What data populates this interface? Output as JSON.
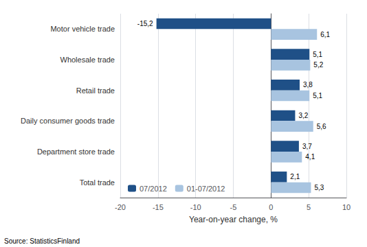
{
  "chart_data": {
    "type": "bar",
    "orientation": "horizontal",
    "categories": [
      "Total trade",
      "Department store trade",
      "Daily consumer goods trade",
      "Retail trade",
      "Wholesale trade",
      "Motor vehicle trade"
    ],
    "series": [
      {
        "name": "07/2012",
        "color": "#1F5087",
        "values": [
          2.1,
          3.7,
          3.2,
          3.8,
          5.1,
          -15.2
        ],
        "value_labels": [
          "2,1",
          "3,7",
          "3,2",
          "3,8",
          "5,1",
          "-15,2"
        ]
      },
      {
        "name": "01-07/2012",
        "color": "#A8C4E0",
        "values": [
          5.3,
          4.1,
          5.6,
          5.1,
          5.2,
          6.1
        ],
        "value_labels": [
          "5,3",
          "4,1",
          "5,6",
          "5,1",
          "5,2",
          "6,1"
        ]
      }
    ],
    "xlabel": "Year-on-year change, %",
    "xlim": [
      -20,
      10
    ],
    "xticks": [
      -20,
      -15,
      -10,
      -5,
      0,
      5,
      10
    ],
    "grid": true,
    "legend": "lower left",
    "data_labels": true,
    "annotations": [
      "Source: StatisticsFinland"
    ]
  }
}
